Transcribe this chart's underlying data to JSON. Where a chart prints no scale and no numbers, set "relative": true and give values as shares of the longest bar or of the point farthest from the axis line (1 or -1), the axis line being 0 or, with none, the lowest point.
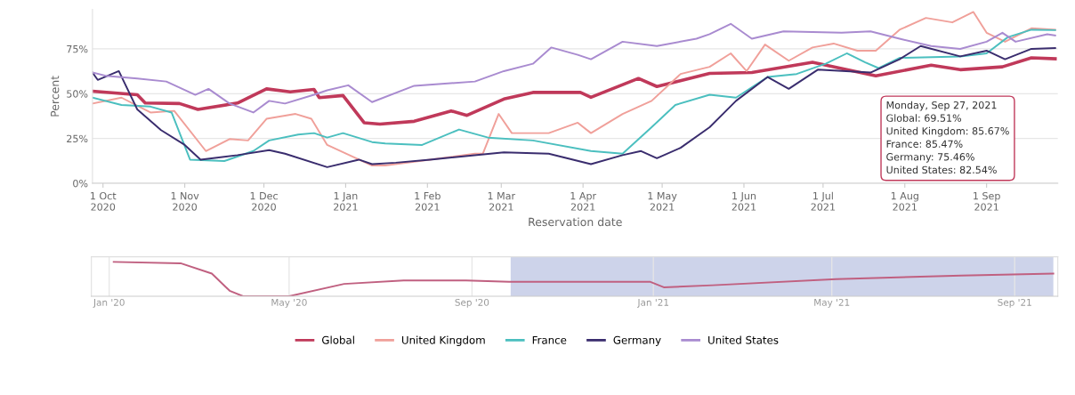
{
  "chart_data": [
    {
      "type": "line",
      "xlabel": "Reservation date",
      "ylabel": "Percent",
      "xlim": [
        "2020-09-27",
        "2021-09-28"
      ],
      "ylim": [
        0,
        97
      ],
      "xticks": [
        {
          "value": "2020-10-01",
          "label": "1 Oct\n2020"
        },
        {
          "value": "2020-11-01",
          "label": "1 Nov\n2020"
        },
        {
          "value": "2020-12-01",
          "label": "1 Dec\n2020"
        },
        {
          "value": "2021-01-01",
          "label": "1 Jan\n2021"
        },
        {
          "value": "2021-02-01",
          "label": "1 Feb\n2021"
        },
        {
          "value": "2021-03-01",
          "label": "1 Mar\n2021"
        },
        {
          "value": "2021-04-01",
          "label": "1 Apr\n2021"
        },
        {
          "value": "2021-05-01",
          "label": "1 May\n2021"
        },
        {
          "value": "2021-06-01",
          "label": "1 Jun\n2021"
        },
        {
          "value": "2021-07-01",
          "label": "1 Jul\n2021"
        },
        {
          "value": "2021-08-01",
          "label": "1 Aug\n2021"
        },
        {
          "value": "2021-09-01",
          "label": "1 Sep\n2021"
        }
      ],
      "yticks": [
        {
          "value": 0,
          "label": "0%"
        },
        {
          "value": 25,
          "label": "25%"
        },
        {
          "value": 50,
          "label": "50%"
        },
        {
          "value": 75,
          "label": "75%"
        }
      ],
      "grid": "y",
      "legend": "bottom",
      "annotations": [
        "Monday, Sep 27, 2021",
        "Global: 69.51%",
        "United Kingdom: 85.67%",
        "France: 85.47%",
        "Germany: 75.46%",
        "United States: 82.54%"
      ],
      "series": [
        {
          "name": "Global",
          "color": "#c0395a",
          "x": [
            "2020-09-27",
            "2020-10-14",
            "2020-10-17",
            "2020-10-30",
            "2020-11-06",
            "2020-11-21",
            "2020-12-02",
            "2020-12-11",
            "2020-12-20",
            "2020-12-22",
            "2020-12-31",
            "2021-01-08",
            "2021-01-14",
            "2021-01-27",
            "2021-02-10",
            "2021-02-16",
            "2021-03-02",
            "2021-03-13",
            "2021-03-31",
            "2021-04-04",
            "2021-04-22",
            "2021-04-29",
            "2021-05-19",
            "2021-06-04",
            "2021-06-27",
            "2021-07-21",
            "2021-08-11",
            "2021-08-22",
            "2021-09-07",
            "2021-09-18",
            "2021-09-27"
          ],
          "values": [
            51.4,
            49.4,
            44.8,
            44.5,
            41.2,
            44.8,
            52.7,
            51,
            52.4,
            47.8,
            49,
            33.8,
            33,
            34.6,
            40.4,
            37.9,
            47,
            50.7,
            50.7,
            48,
            58.5,
            54,
            61.3,
            61.8,
            67.5,
            60,
            65.9,
            63.4,
            65,
            70,
            69.51
          ]
        },
        {
          "name": "United Kingdom",
          "color": "#f0a09a",
          "x": [
            "2020-09-27",
            "2020-10-08",
            "2020-10-19",
            "2020-10-28",
            "2020-11-09",
            "2020-11-18",
            "2020-11-25",
            "2020-12-02",
            "2020-12-13",
            "2020-12-19",
            "2020-12-25",
            "2021-01-11",
            "2021-01-16",
            "2021-02-19",
            "2021-02-22",
            "2021-02-28",
            "2021-03-05",
            "2021-03-19",
            "2021-03-30",
            "2021-04-04",
            "2021-04-16",
            "2021-04-27",
            "2021-05-08",
            "2021-05-19",
            "2021-05-27",
            "2021-06-02",
            "2021-06-09",
            "2021-06-18",
            "2021-06-27",
            "2021-07-05",
            "2021-07-14",
            "2021-07-21",
            "2021-07-30",
            "2021-08-09",
            "2021-08-19",
            "2021-08-27",
            "2021-09-01",
            "2021-09-08",
            "2021-09-18",
            "2021-09-27"
          ],
          "values": [
            44.5,
            47.8,
            39.5,
            40.4,
            18,
            24.7,
            23.9,
            36,
            38.7,
            36,
            21.4,
            9.9,
            9.9,
            16.5,
            16.5,
            38.7,
            28,
            28,
            33.8,
            28,
            38.7,
            46,
            61,
            65,
            72.5,
            62.6,
            77.4,
            68.4,
            75.8,
            78,
            74,
            74,
            85.7,
            92.3,
            89.8,
            95.6,
            84,
            79,
            86.5,
            85.67
          ]
        },
        {
          "name": "France",
          "color": "#4bbfbf",
          "x": [
            "2020-09-27",
            "2020-10-08",
            "2020-10-19",
            "2020-10-27",
            "2020-11-03",
            "2020-11-16",
            "2020-11-27",
            "2020-12-03",
            "2020-12-14",
            "2020-12-20",
            "2020-12-25",
            "2020-12-31",
            "2021-01-11",
            "2021-01-16",
            "2021-01-30",
            "2021-02-13",
            "2021-02-24",
            "2021-03-13",
            "2021-04-04",
            "2021-04-16",
            "2021-04-27",
            "2021-05-06",
            "2021-05-19",
            "2021-05-29",
            "2021-06-10",
            "2021-06-21",
            "2021-07-02",
            "2021-07-10",
            "2021-07-17",
            "2021-07-22",
            "2021-07-30",
            "2021-08-22",
            "2021-09-01",
            "2021-09-09",
            "2021-09-18",
            "2021-09-27"
          ],
          "values": [
            47.8,
            43.7,
            42.8,
            39.5,
            13.2,
            12.4,
            18,
            23.9,
            27.2,
            28,
            25.5,
            28,
            23,
            22.2,
            21.4,
            30,
            25.5,
            23.9,
            18,
            16.5,
            31.3,
            43.7,
            49.4,
            47.8,
            59.3,
            61,
            66.7,
            72.5,
            67.5,
            64.3,
            70,
            70.8,
            72.5,
            81.5,
            85.7,
            85.47
          ]
        },
        {
          "name": "Germany",
          "color": "#3a2d6e",
          "x": [
            "2020-09-27",
            "2020-09-29",
            "2020-10-07",
            "2020-10-14",
            "2020-10-23",
            "2020-11-01",
            "2020-11-07",
            "2020-11-21",
            "2020-12-03",
            "2020-12-09",
            "2020-12-25",
            "2021-01-06",
            "2021-01-11",
            "2021-01-20",
            "2021-02-02",
            "2021-03-02",
            "2021-03-19",
            "2021-04-04",
            "2021-04-16",
            "2021-04-23",
            "2021-04-29",
            "2021-05-08",
            "2021-05-19",
            "2021-05-29",
            "2021-06-10",
            "2021-06-18",
            "2021-06-29",
            "2021-07-19",
            "2021-07-30",
            "2021-08-07",
            "2021-08-22",
            "2021-09-01",
            "2021-09-08",
            "2021-09-18",
            "2021-09-27"
          ],
          "values": [
            61.8,
            57.7,
            62.6,
            41.2,
            29.7,
            21.4,
            13.2,
            15.7,
            18.5,
            16.5,
            9,
            13.2,
            10.7,
            11.5,
            13.2,
            17.3,
            16.5,
            10.7,
            15.7,
            18,
            14,
            19.8,
            31.3,
            46,
            59.3,
            52.7,
            63.4,
            61.8,
            69.2,
            76.6,
            70.8,
            74,
            69.2,
            75,
            75.46
          ]
        },
        {
          "name": "United States",
          "color": "#a98bd0",
          "x": [
            "2020-09-27",
            "2020-10-02",
            "2020-10-14",
            "2020-10-25",
            "2020-11-05",
            "2020-11-10",
            "2020-11-18",
            "2020-11-27",
            "2020-12-03",
            "2020-12-09",
            "2020-12-20",
            "2020-12-25",
            "2021-01-02",
            "2021-01-11",
            "2021-01-27",
            "2021-02-19",
            "2021-03-02",
            "2021-03-13",
            "2021-03-20",
            "2021-03-30",
            "2021-04-04",
            "2021-04-16",
            "2021-04-29",
            "2021-05-14",
            "2021-05-19",
            "2021-05-27",
            "2021-06-04",
            "2021-06-16",
            "2021-07-08",
            "2021-07-19",
            "2021-07-30",
            "2021-08-11",
            "2021-08-22",
            "2021-09-01",
            "2021-09-07",
            "2021-09-12",
            "2021-09-24",
            "2021-09-27"
          ],
          "values": [
            61.8,
            60,
            58.5,
            56.8,
            49.4,
            52.7,
            44.5,
            39.5,
            46,
            44.5,
            49.4,
            51.9,
            54.7,
            45.3,
            54.4,
            56.8,
            62.6,
            66.7,
            75.8,
            71.7,
            69.2,
            79,
            76.6,
            80.7,
            83.2,
            89,
            80.7,
            84.8,
            84,
            84.8,
            80.7,
            76.6,
            75,
            79,
            84,
            79,
            83.2,
            82.54
          ]
        }
      ]
    },
    {
      "type": "line",
      "relative": true,
      "grid": "x",
      "xlim": [
        "2019-12-20",
        "2021-09-30"
      ],
      "xticks": [
        {
          "value": "2020-01-01",
          "label": "Jan '20"
        },
        {
          "value": "2020-05-01",
          "label": "May '20"
        },
        {
          "value": "2020-09-01",
          "label": "Sep '20"
        },
        {
          "value": "2021-01-01",
          "label": "Jan '21"
        },
        {
          "value": "2021-05-01",
          "label": "May '21"
        },
        {
          "value": "2021-09-01",
          "label": "Sep '21"
        }
      ],
      "bands": [
        {
          "axis": "x",
          "from": "2020-09-27",
          "to": "2021-09-27",
          "color": "#cdd3ea"
        }
      ],
      "x": [
        "2020-01-04",
        "2020-02-18",
        "2020-03-10",
        "2020-03-22",
        "2020-03-31",
        "2020-05-01",
        "2020-06-07",
        "2020-07-17",
        "2020-08-28",
        "2020-09-26",
        "2020-12-30",
        "2021-01-08",
        "2021-02-10",
        "2021-05-04",
        "2021-07-27",
        "2021-09-27"
      ],
      "series": [
        {
          "color": "#c06080",
          "values": [
            1.0,
            0.96,
            0.66,
            0.16,
            0,
            0,
            0.36,
            0.46,
            0.46,
            0.42,
            0.42,
            0.26,
            0.32,
            0.5,
            0.6,
            0.66
          ]
        }
      ]
    }
  ]
}
